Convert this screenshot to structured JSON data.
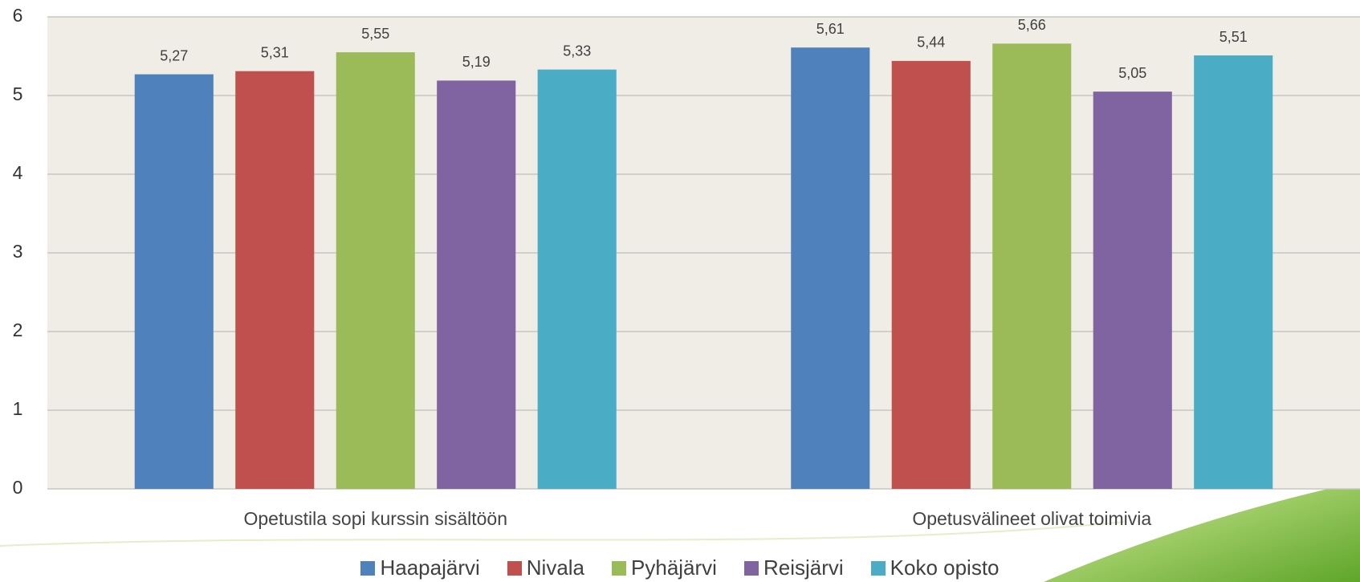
{
  "chart_data": {
    "type": "bar",
    "categories": [
      "Opetustila sopi kurssin sisältöön",
      "Opetusvälineet olivat toimivia"
    ],
    "series": [
      {
        "name": "Haapajärvi",
        "color": "#4f81bd",
        "values": [
          5.27,
          5.61
        ],
        "value_labels": [
          "5,27",
          "5,61"
        ]
      },
      {
        "name": "Nivala",
        "color": "#c0504d",
        "values": [
          5.31,
          5.44
        ],
        "value_labels": [
          "5,31",
          "5,44"
        ]
      },
      {
        "name": "Pyhäjärvi",
        "color": "#9bbb59",
        "values": [
          5.55,
          5.66
        ],
        "value_labels": [
          "5,55",
          "5,66"
        ]
      },
      {
        "name": "Reisjärvi",
        "color": "#8064a2",
        "values": [
          5.19,
          5.05
        ],
        "value_labels": [
          "5,19",
          "5,05"
        ]
      },
      {
        "name": "Koko opisto",
        "color": "#4bacc6",
        "values": [
          5.33,
          5.51
        ],
        "value_labels": [
          "5,33",
          "5,51"
        ]
      }
    ],
    "ylim": [
      0,
      6
    ],
    "yticks": [
      0,
      1,
      2,
      3,
      4,
      5,
      6
    ],
    "grid": true,
    "legend": "bottom"
  }
}
